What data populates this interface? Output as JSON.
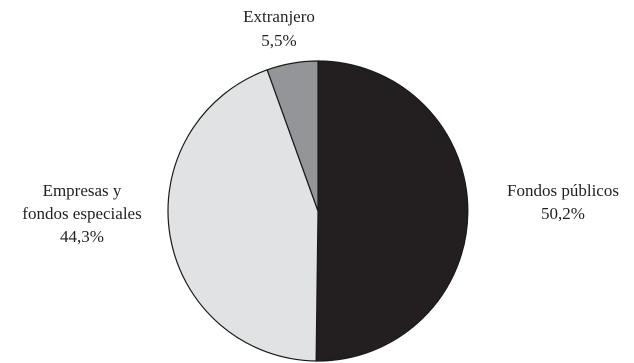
{
  "chart_data": {
    "type": "pie",
    "title": "",
    "slices": [
      {
        "label_lines": [
          "Fondos públicos"
        ],
        "value": 50.2,
        "value_label": "50,2%",
        "color": "#231f20"
      },
      {
        "label_lines": [
          "Empresas y",
          "fondos especiales"
        ],
        "value": 44.3,
        "value_label": "44,3%",
        "color": "#e1e2e4"
      },
      {
        "label_lines": [
          "Extranjero"
        ],
        "value": 5.5,
        "value_label": "5,5%",
        "color": "#939598"
      }
    ],
    "start_angle_deg": 0,
    "direction": "clockwise",
    "legend": "none"
  }
}
